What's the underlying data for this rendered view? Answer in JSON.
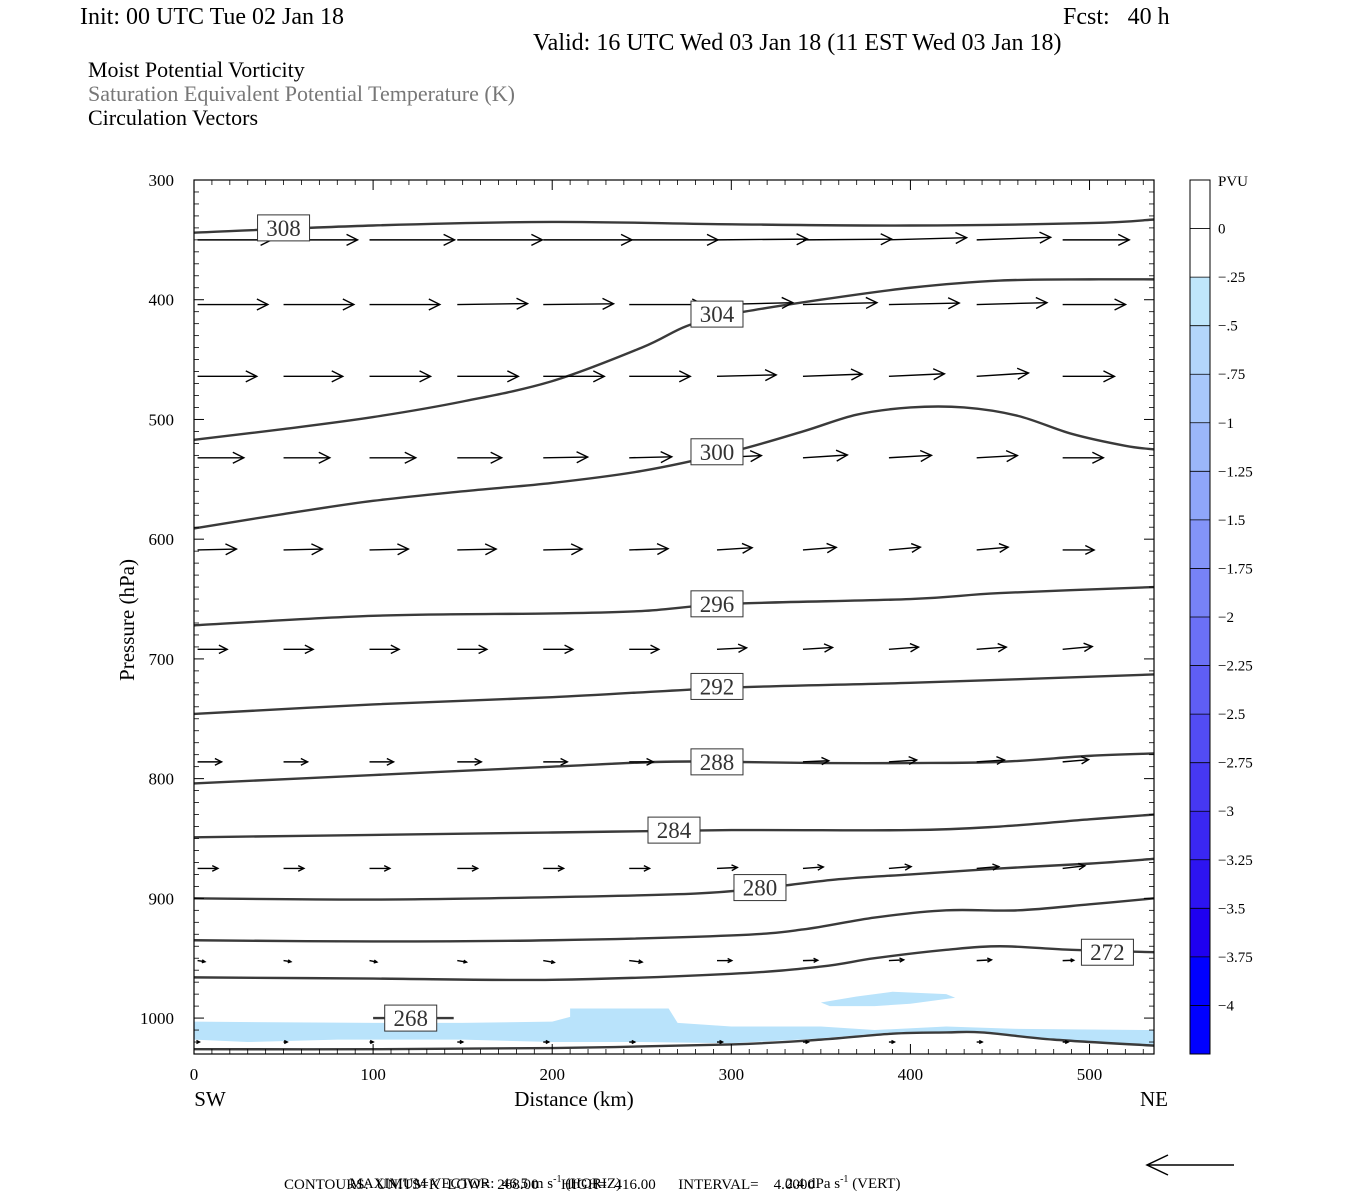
{
  "header": {
    "init": "Init: 00 UTC Tue 02 Jan 18",
    "fcst": "Fcst:   40 h",
    "valid": "Valid: 16 UTC Wed 03 Jan 18 (11 EST Wed 03 Jan 18)",
    "line1": "Moist Potential Vorticity",
    "line2": "Saturation Equivalent Potential Temperature (K)",
    "line3": "Circulation Vectors"
  },
  "colors": {
    "contour": "#3a3a3a",
    "mpv_fill": "#b9e3fb",
    "vector": "#000000",
    "colorbar": [
      "#ffffff",
      "#ffffff",
      "#bfe6fb",
      "#b3d6fb",
      "#a8c8fb",
      "#9bb7fa",
      "#8fa6fa",
      "#8394f8",
      "#7782f7",
      "#6b70f6",
      "#5f5ef5",
      "#524cf4",
      "#4638f3",
      "#3a27f2",
      "#2d14f1",
      "#1f00f0",
      "#0000ff",
      "#0000ff"
    ]
  },
  "chart_data": {
    "type": "cross-section",
    "xlabel": "Distance (km)",
    "ylabel": "Pressure (hPa)",
    "x_range": [
      0,
      536
    ],
    "y_range": [
      300,
      1030
    ],
    "y_scale": "linear",
    "x_ticks": [
      0,
      100,
      200,
      300,
      400,
      500
    ],
    "y_ticks": [
      300,
      400,
      500,
      600,
      700,
      800,
      900,
      1000
    ],
    "x_end_labels": {
      "left": "SW",
      "right": "NE"
    },
    "contour_units": "K",
    "contours": [
      {
        "level": 308,
        "label": "308",
        "label_at": [
          50,
          340
        ],
        "points": [
          [
            0,
            344
          ],
          [
            100,
            338
          ],
          [
            200,
            335
          ],
          [
            300,
            337
          ],
          [
            400,
            338
          ],
          [
            500,
            336
          ],
          [
            536,
            333
          ]
        ]
      },
      {
        "level": 304,
        "label": "304",
        "label_at": [
          292,
          412
        ],
        "points": [
          [
            0,
            517
          ],
          [
            50,
            508
          ],
          [
            100,
            498
          ],
          [
            150,
            485
          ],
          [
            200,
            468
          ],
          [
            250,
            440
          ],
          [
            275,
            422
          ],
          [
            300,
            412
          ],
          [
            350,
            400
          ],
          [
            400,
            390
          ],
          [
            450,
            384
          ],
          [
            500,
            383
          ],
          [
            536,
            383
          ]
        ]
      },
      {
        "level": 300,
        "label": "300",
        "label_at": [
          292,
          527
        ],
        "points": [
          [
            0,
            591
          ],
          [
            50,
            579
          ],
          [
            100,
            568
          ],
          [
            150,
            560
          ],
          [
            200,
            553
          ],
          [
            250,
            543
          ],
          [
            300,
            527
          ],
          [
            340,
            510
          ],
          [
            370,
            496
          ],
          [
            400,
            490
          ],
          [
            430,
            490
          ],
          [
            460,
            497
          ],
          [
            490,
            512
          ],
          [
            520,
            522
          ],
          [
            536,
            525
          ]
        ]
      },
      {
        "level": 296,
        "label": "296",
        "label_at": [
          292,
          654
        ],
        "points": [
          [
            0,
            672
          ],
          [
            100,
            664
          ],
          [
            200,
            662
          ],
          [
            250,
            660
          ],
          [
            300,
            654
          ],
          [
            400,
            650
          ],
          [
            450,
            645
          ],
          [
            536,
            640
          ]
        ]
      },
      {
        "level": 292,
        "label": "292",
        "label_at": [
          292,
          723
        ],
        "points": [
          [
            0,
            746
          ],
          [
            100,
            738
          ],
          [
            200,
            732
          ],
          [
            300,
            724
          ],
          [
            400,
            720
          ],
          [
            536,
            713
          ]
        ]
      },
      {
        "level": 288,
        "label": "288",
        "label_at": [
          292,
          786
        ],
        "points": [
          [
            0,
            804
          ],
          [
            100,
            797
          ],
          [
            200,
            790
          ],
          [
            260,
            786
          ],
          [
            300,
            786
          ],
          [
            350,
            787
          ],
          [
            400,
            787
          ],
          [
            450,
            786
          ],
          [
            500,
            781
          ],
          [
            536,
            779
          ]
        ]
      },
      {
        "level": 284,
        "label": "284",
        "label_at": [
          268,
          843
        ],
        "points": [
          [
            0,
            849
          ],
          [
            100,
            847
          ],
          [
            200,
            845
          ],
          [
            300,
            843
          ],
          [
            400,
            843
          ],
          [
            450,
            840
          ],
          [
            500,
            834
          ],
          [
            536,
            830
          ]
        ]
      },
      {
        "level": 280,
        "label": "280",
        "label_at": [
          316,
          891
        ],
        "points": [
          [
            0,
            900
          ],
          [
            100,
            901
          ],
          [
            200,
            899
          ],
          [
            280,
            896
          ],
          [
            320,
            891
          ],
          [
            360,
            884
          ],
          [
            400,
            880
          ],
          [
            450,
            875
          ],
          [
            500,
            871
          ],
          [
            536,
            867
          ]
        ]
      },
      {
        "level": 276,
        "label": "",
        "label_at": null,
        "points": [
          [
            0,
            935
          ],
          [
            100,
            936
          ],
          [
            200,
            935
          ],
          [
            300,
            931
          ],
          [
            340,
            926
          ],
          [
            380,
            916
          ],
          [
            420,
            910
          ],
          [
            460,
            910
          ],
          [
            500,
            905
          ],
          [
            536,
            900
          ]
        ]
      },
      {
        "level": 272,
        "label": "272",
        "label_at": [
          510,
          945
        ],
        "points": [
          [
            0,
            966
          ],
          [
            100,
            967
          ],
          [
            200,
            968
          ],
          [
            300,
            963
          ],
          [
            350,
            957
          ],
          [
            380,
            950
          ],
          [
            420,
            943
          ],
          [
            450,
            940
          ],
          [
            490,
            943
          ],
          [
            536,
            945
          ]
        ]
      },
      {
        "level": 268,
        "label": "268",
        "label_at": [
          121,
          1000
        ],
        "points": [
          [
            100,
            1000
          ],
          [
            145,
            1000
          ]
        ]
      },
      {
        "level": 268,
        "label": "",
        "label_at": null,
        "points": [
          [
            0,
            1026
          ],
          [
            100,
            1026
          ],
          [
            200,
            1025
          ],
          [
            300,
            1022
          ],
          [
            350,
            1018
          ],
          [
            390,
            1013
          ],
          [
            420,
            1012
          ],
          [
            440,
            1012
          ],
          [
            480,
            1018
          ],
          [
            536,
            1023
          ]
        ]
      }
    ],
    "mpv_shaded_regions_pvu": [
      {
        "band": "-0.25 to 0",
        "points": [
          [
            0,
            1003
          ],
          [
            100,
            1004
          ],
          [
            150,
            1004
          ],
          [
            200,
            1003
          ],
          [
            210,
            999
          ],
          [
            210,
            992
          ],
          [
            265,
            992
          ],
          [
            270,
            1004
          ],
          [
            300,
            1007
          ],
          [
            350,
            1007
          ],
          [
            380,
            1010
          ],
          [
            420,
            1007
          ],
          [
            460,
            1009
          ],
          [
            536,
            1010
          ],
          [
            536,
            1022
          ],
          [
            480,
            1018
          ],
          [
            440,
            1011
          ],
          [
            390,
            1012
          ],
          [
            350,
            1017
          ],
          [
            300,
            1021
          ],
          [
            250,
            1020
          ],
          [
            200,
            1020
          ],
          [
            150,
            1018
          ],
          [
            80,
            1018
          ],
          [
            30,
            1020
          ],
          [
            0,
            1018
          ]
        ]
      },
      {
        "band": "-0.25 to 0",
        "points": [
          [
            350,
            987
          ],
          [
            370,
            982
          ],
          [
            390,
            978
          ],
          [
            420,
            980
          ],
          [
            425,
            983
          ],
          [
            400,
            988
          ],
          [
            380,
            990
          ],
          [
            355,
            990
          ]
        ]
      }
    ],
    "vector_reference": {
      "max_vector": "MAXIMUM VECTOR:  46.5 m s",
      "max_vector_sup": "-1",
      "horiz_unit": " (HORIZ)",
      "vert_value": "2.4 dPa s",
      "vert_sup": "-1",
      "vert_unit": " (VERT)",
      "contours_line": "CONTOURS:  UNITS=K  LOW=  268.00      HIGH=  416.00      INTERVAL=    4.0000"
    },
    "vector_rows_hpa": [
      350,
      404,
      464,
      532,
      609,
      692,
      786,
      875,
      952,
      1020
    ],
    "vector_columns_km": [
      2,
      50,
      98,
      147,
      195,
      243,
      292,
      340,
      388,
      437,
      485
    ],
    "vectors": [
      [
        [
          40,
          0
        ],
        [
          40,
          0
        ],
        [
          46,
          0
        ],
        [
          46,
          0
        ],
        [
          48,
          0
        ],
        [
          48,
          0
        ],
        [
          49,
          -0.4
        ],
        [
          48,
          -0.4
        ],
        [
          42,
          -1.2
        ],
        [
          40,
          -1.4
        ],
        [
          36,
          0
        ]
      ],
      [
        [
          38,
          0
        ],
        [
          38,
          0
        ],
        [
          38,
          0
        ],
        [
          38,
          -0.5
        ],
        [
          38,
          -0.4
        ],
        [
          40,
          0
        ],
        [
          41,
          -1
        ],
        [
          40,
          -1
        ],
        [
          38,
          -0.8
        ],
        [
          38,
          -1
        ],
        [
          34,
          0
        ]
      ],
      [
        [
          32,
          0
        ],
        [
          32,
          0
        ],
        [
          33,
          0
        ],
        [
          33,
          0
        ],
        [
          33,
          0
        ],
        [
          33,
          0
        ],
        [
          32,
          -0.8
        ],
        [
          32,
          -1.2
        ],
        [
          30,
          -1.4
        ],
        [
          28,
          -1.8
        ],
        [
          28,
          0
        ]
      ],
      [
        [
          25,
          0
        ],
        [
          25,
          0
        ],
        [
          25,
          0
        ],
        [
          24,
          0
        ],
        [
          24,
          -0.4
        ],
        [
          23,
          -0.5
        ],
        [
          24,
          -1.2
        ],
        [
          24,
          -1.5
        ],
        [
          23,
          -1.3
        ],
        [
          22,
          -1.2
        ],
        [
          22,
          0
        ]
      ],
      [
        [
          21,
          -0.5
        ],
        [
          21,
          -0.5
        ],
        [
          21,
          -0.5
        ],
        [
          21,
          -0.5
        ],
        [
          21,
          -0.5
        ],
        [
          21,
          -0.7
        ],
        [
          19,
          -1.2
        ],
        [
          18,
          -1.4
        ],
        [
          17,
          -1.5
        ],
        [
          17,
          -1.5
        ],
        [
          17,
          0
        ]
      ],
      [
        [
          16,
          0
        ],
        [
          16,
          0
        ],
        [
          16,
          0
        ],
        [
          16,
          0
        ],
        [
          16,
          0
        ],
        [
          16,
          0
        ],
        [
          16,
          -0.8
        ],
        [
          16,
          -1
        ],
        [
          16,
          -1.2
        ],
        [
          16,
          -1.2
        ],
        [
          16,
          -1.5
        ]
      ],
      [
        [
          13,
          0
        ],
        [
          13,
          0
        ],
        [
          13,
          0
        ],
        [
          13,
          0
        ],
        [
          13,
          0
        ],
        [
          13,
          0
        ],
        [
          13,
          -0.5
        ],
        [
          14,
          -0.6
        ],
        [
          15,
          -1
        ],
        [
          15,
          -1
        ],
        [
          14,
          -1.2
        ]
      ],
      [
        [
          11,
          0
        ],
        [
          11,
          0
        ],
        [
          11,
          0
        ],
        [
          11,
          0
        ],
        [
          11,
          0
        ],
        [
          11,
          0
        ],
        [
          11,
          -0.5
        ],
        [
          11,
          -0.8
        ],
        [
          12,
          -1
        ],
        [
          12,
          -1
        ],
        [
          12,
          -1.4
        ]
      ],
      [
        [
          4,
          0.6
        ],
        [
          4,
          0.6
        ],
        [
          4,
          0.8
        ],
        [
          5,
          0.8
        ],
        [
          6,
          1
        ],
        [
          7,
          0.8
        ],
        [
          8,
          0
        ],
        [
          8,
          -0.2
        ],
        [
          8,
          -0.4
        ],
        [
          8,
          -0.4
        ],
        [
          6,
          -0.2
        ]
      ],
      [
        [
          1,
          0
        ],
        [
          2,
          0
        ],
        [
          2,
          0
        ],
        [
          3,
          0
        ],
        [
          3,
          0
        ],
        [
          3,
          0
        ],
        [
          3,
          0
        ],
        [
          3,
          0
        ],
        [
          3,
          0
        ],
        [
          3,
          0
        ],
        [
          3,
          0
        ]
      ]
    ],
    "colorbar": {
      "title": "PVU",
      "labels": [
        "0",
        "-.25",
        "-.5",
        "-.75",
        "-1",
        "-1.25",
        "-1.5",
        "-1.75",
        "-2",
        "-2.25",
        "-2.5",
        "-2.75",
        "-3",
        "-3.25",
        "-3.5",
        "-3.75",
        "-4"
      ]
    }
  }
}
